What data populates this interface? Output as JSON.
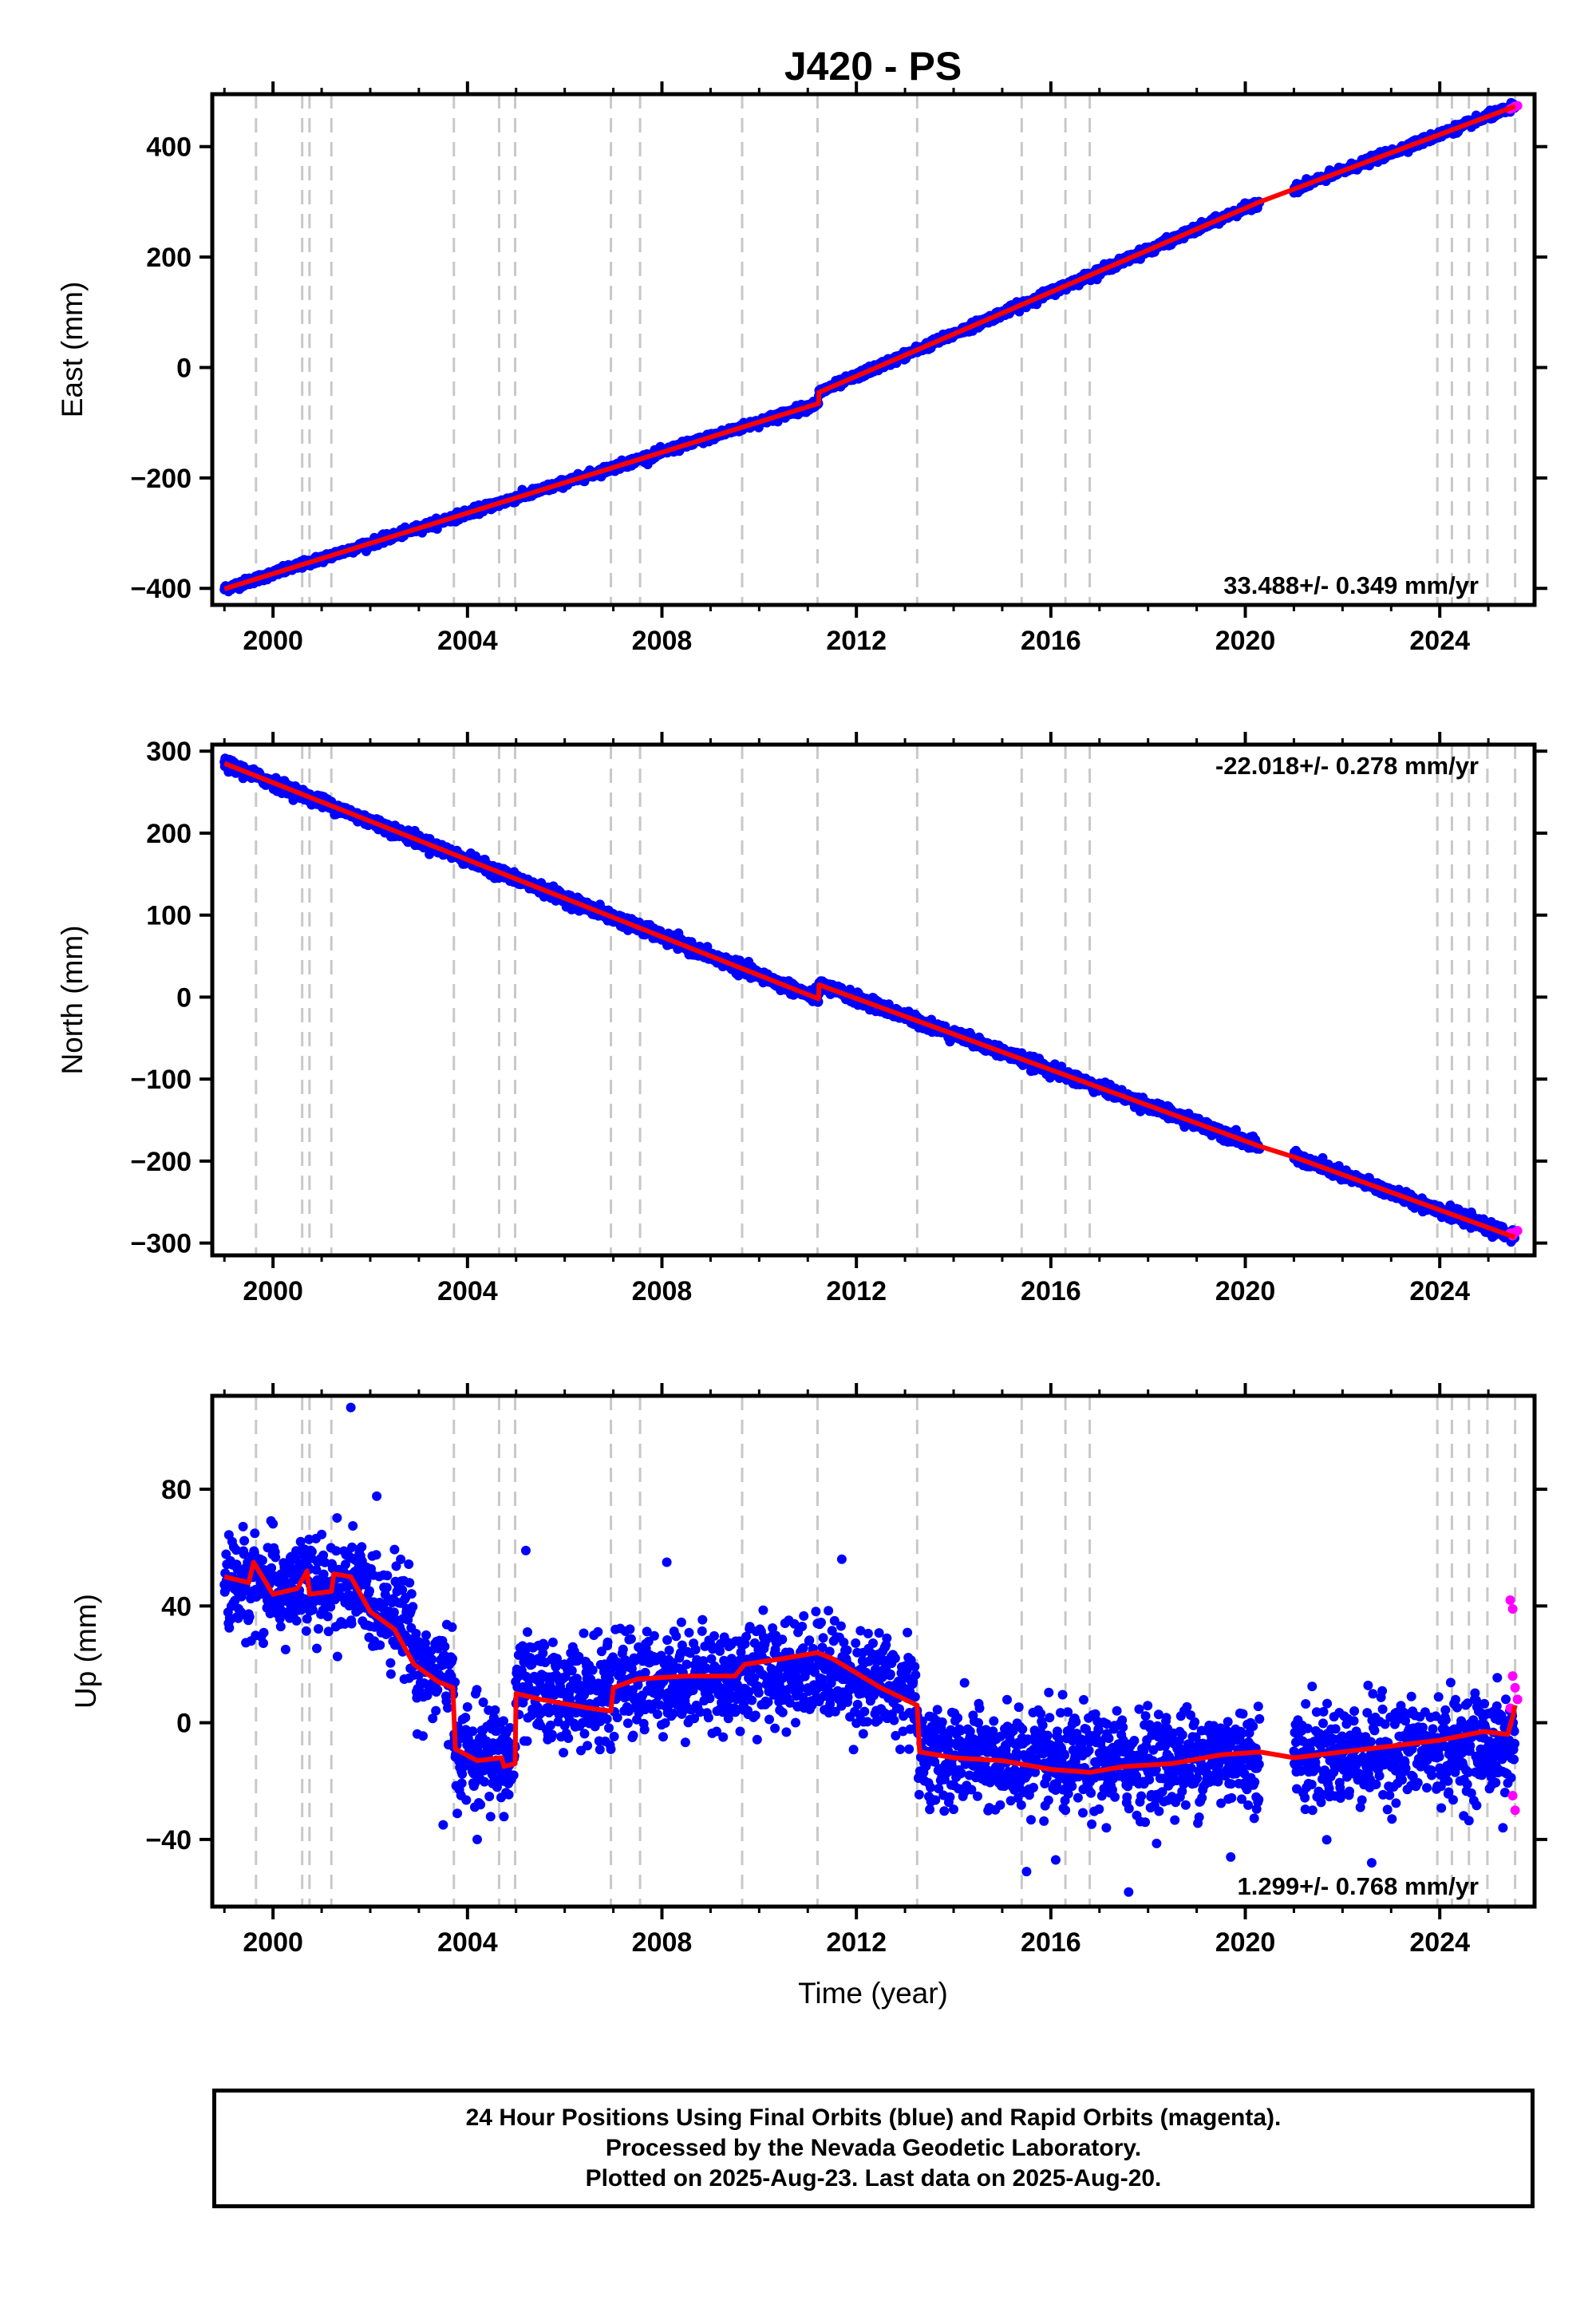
{
  "title": "J420 - PS",
  "xlabel": "Time (year)",
  "footer": {
    "line1": "24 Hour Positions Using Final Orbits (blue) and Rapid Orbits (magenta).",
    "line2": "Processed by the Nevada Geodetic Laboratory.",
    "line3": "Plotted on 2025-Aug-23. Last data on 2025-Aug-20."
  },
  "colors": {
    "final": "#0000ff",
    "rapid": "#ff00ff",
    "model": "#ff0000",
    "equipment_lines": "#c8c8c8"
  },
  "chart_data": [
    {
      "type": "scatter",
      "name": "east",
      "ylabel": "East (mm)",
      "rate_text": "33.488+/- 0.349 mm/yr",
      "rate_position": "bottom-right",
      "xlim": [
        1998.75,
        2025.95
      ],
      "ylim": [
        -430,
        495
      ],
      "xticks": [
        2000,
        2004,
        2008,
        2012,
        2016,
        2020,
        2024
      ],
      "yticks": [
        -400,
        -200,
        0,
        200,
        400
      ],
      "rate_mm_per_yr": 33.488,
      "model_nodes": [
        [
          1999.0,
          -401
        ],
        [
          2011.22,
          -65
        ],
        [
          2011.23,
          -45
        ],
        [
          2020.3,
          300
        ],
        [
          2021.0,
          323
        ],
        [
          2025.55,
          473
        ]
      ],
      "rapid_points": [
        [
          2025.45,
          468
        ],
        [
          2025.5,
          470
        ],
        [
          2025.55,
          473
        ],
        [
          2025.6,
          474
        ]
      ]
    },
    {
      "type": "scatter",
      "name": "north",
      "ylabel": "North (mm)",
      "rate_text": "-22.018+/- 0.278 mm/yr",
      "rate_position": "top-right",
      "xlim": [
        1998.75,
        2025.95
      ],
      "ylim": [
        -315,
        308
      ],
      "xticks": [
        2000,
        2004,
        2008,
        2012,
        2016,
        2020,
        2024
      ],
      "yticks": [
        -300,
        -200,
        -100,
        0,
        100,
        200,
        300
      ],
      "rate_mm_per_yr": -22.018,
      "model_nodes": [
        [
          1999.0,
          285
        ],
        [
          2011.22,
          -2
        ],
        [
          2011.23,
          15
        ],
        [
          2020.3,
          -182
        ],
        [
          2021.0,
          -195
        ],
        [
          2025.55,
          -293
        ]
      ],
      "rapid_points": [
        [
          2025.45,
          -288
        ],
        [
          2025.5,
          -291
        ],
        [
          2025.55,
          -287
        ],
        [
          2025.6,
          -285
        ]
      ]
    },
    {
      "type": "scatter",
      "name": "up",
      "ylabel": "Up (mm)",
      "rate_text": "1.299+/- 0.768 mm/yr",
      "rate_position": "bottom-right",
      "xlim": [
        1998.75,
        2025.95
      ],
      "ylim": [
        -63,
        112
      ],
      "xticks": [
        2000,
        2004,
        2008,
        2012,
        2016,
        2020,
        2024
      ],
      "yticks": [
        -40,
        0,
        40,
        80
      ],
      "rate_mm_per_yr": 1.299,
      "data_gap": [
        2020.3,
        2021.0
      ],
      "level_segments": [
        [
          1999.0,
          2002.9,
          46
        ],
        [
          2002.9,
          2003.7,
          20
        ],
        [
          2003.7,
          2004.98,
          -11
        ],
        [
          2004.98,
          2013.25,
          14
        ],
        [
          2013.25,
          2025.55,
          -12
        ]
      ],
      "model_nodes": [
        [
          1999.0,
          50
        ],
        [
          1999.5,
          48
        ],
        [
          1999.6,
          55
        ],
        [
          2000.0,
          44
        ],
        [
          2000.5,
          46
        ],
        [
          2000.7,
          52
        ],
        [
          2000.75,
          44
        ],
        [
          2001.2,
          45
        ],
        [
          2001.25,
          51
        ],
        [
          2001.6,
          50
        ],
        [
          2002.0,
          38
        ],
        [
          2002.5,
          32
        ],
        [
          2002.9,
          20
        ],
        [
          2003.4,
          14
        ],
        [
          2003.7,
          12
        ],
        [
          2003.75,
          -9
        ],
        [
          2004.2,
          -13
        ],
        [
          2004.7,
          -12
        ],
        [
          2004.75,
          -15
        ],
        [
          2004.98,
          -14
        ],
        [
          2005.0,
          10
        ],
        [
          2005.5,
          8
        ],
        [
          2006.5,
          5
        ],
        [
          2006.95,
          4
        ],
        [
          2007.0,
          12
        ],
        [
          2007.5,
          15
        ],
        [
          2008.5,
          16
        ],
        [
          2009.5,
          16
        ],
        [
          2009.7,
          20
        ],
        [
          2010.5,
          22
        ],
        [
          2011.2,
          24
        ],
        [
          2011.5,
          22
        ],
        [
          2012.5,
          12
        ],
        [
          2013.25,
          6
        ],
        [
          2013.3,
          -10
        ],
        [
          2014.0,
          -12
        ],
        [
          2015.0,
          -13
        ],
        [
          2016.0,
          -16
        ],
        [
          2016.8,
          -17
        ],
        [
          2017.5,
          -15
        ],
        [
          2018.5,
          -14
        ],
        [
          2019.5,
          -11
        ],
        [
          2020.3,
          -10
        ],
        [
          2021.0,
          -12
        ],
        [
          2022.0,
          -10
        ],
        [
          2023.0,
          -8
        ],
        [
          2024.0,
          -6
        ],
        [
          2024.9,
          -3
        ],
        [
          2025.4,
          -4
        ],
        [
          2025.5,
          2
        ],
        [
          2025.55,
          6
        ]
      ],
      "rapid_points": [
        [
          2025.45,
          42
        ],
        [
          2025.5,
          39
        ],
        [
          2025.5,
          16
        ],
        [
          2025.55,
          12
        ],
        [
          2025.45,
          5
        ],
        [
          2025.55,
          -30
        ],
        [
          2025.5,
          -25
        ],
        [
          2025.6,
          8
        ]
      ],
      "outlier_points": [
        [
          2001.6,
          108
        ],
        [
          2005.2,
          59
        ],
        [
          2008.1,
          55
        ],
        [
          2011.7,
          56
        ],
        [
          2015.5,
          -51
        ],
        [
          2017.6,
          -58
        ],
        [
          2019.7,
          -46
        ],
        [
          2022.6,
          -48
        ],
        [
          2004.2,
          -40
        ],
        [
          2016.1,
          -47
        ],
        [
          2003.5,
          -35
        ],
        [
          2025.3,
          -36
        ]
      ]
    }
  ],
  "equipment_change_years": [
    1999.65,
    2000.6,
    2000.75,
    2001.2,
    2003.72,
    2004.65,
    2004.98,
    2006.95,
    2007.55,
    2009.65,
    2011.2,
    2013.25,
    2015.4,
    2016.3,
    2016.8,
    2023.95,
    2024.25,
    2024.6,
    2024.98,
    2025.55
  ]
}
